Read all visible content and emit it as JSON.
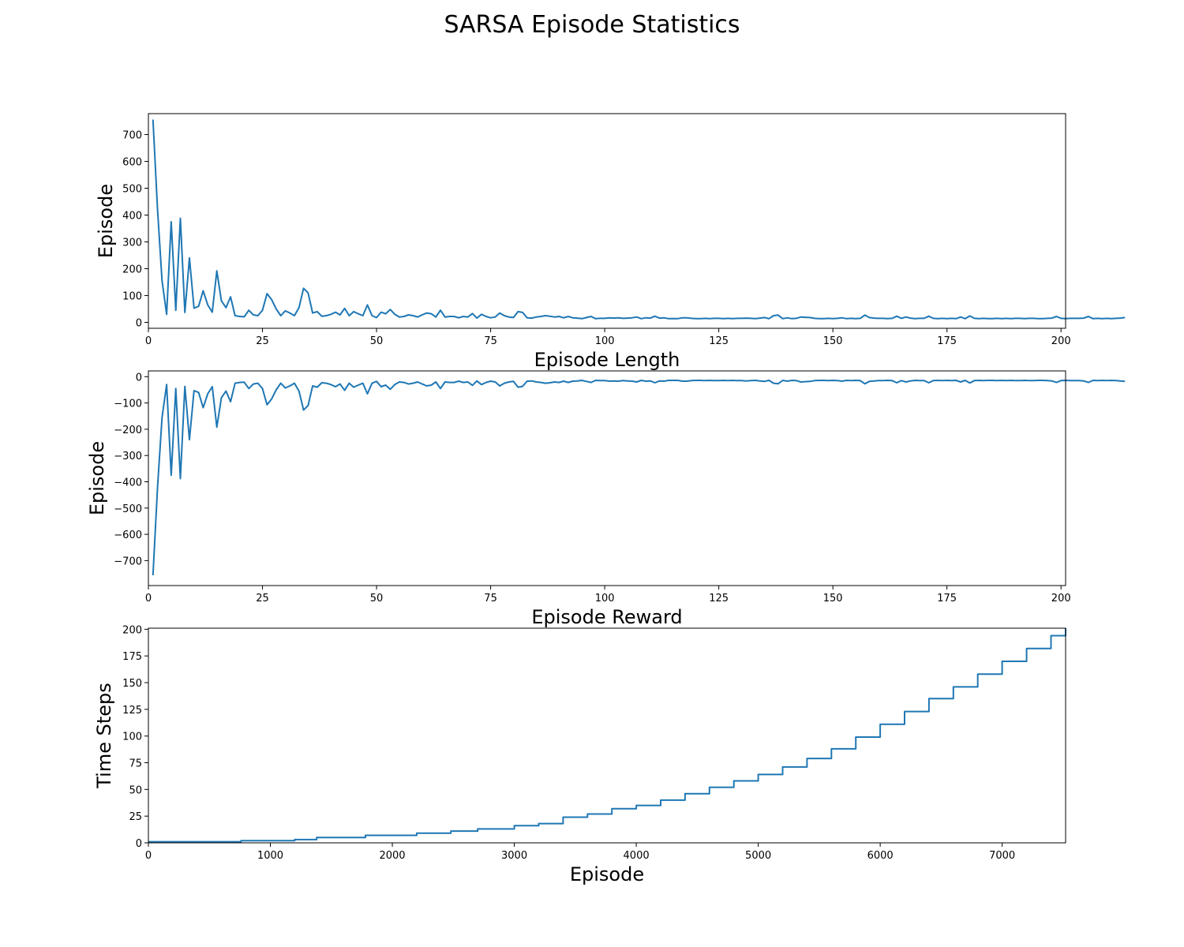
{
  "figure": {
    "title": "SARSA Episode Statistics"
  },
  "colors": {
    "line": "#1f77b4",
    "axes": "#000000",
    "background": "#ffffff"
  },
  "chart_data": [
    {
      "type": "line",
      "title": "",
      "xlabel": "Episode Length",
      "ylabel": "Episode",
      "xlim": [
        0,
        201
      ],
      "ylim": [
        -22,
        778
      ],
      "xticks": [
        0,
        25,
        50,
        75,
        100,
        125,
        150,
        175,
        200
      ],
      "yticks": [
        0,
        100,
        200,
        300,
        400,
        500,
        600,
        700
      ],
      "grid": false,
      "legend": "none",
      "x_start": 1,
      "series": [
        {
          "values": [
            756,
            420,
            155,
            30,
            375,
            45,
            388,
            37,
            240,
            53,
            60,
            118,
            65,
            38,
            192,
            80,
            55,
            95,
            25,
            22,
            21,
            45,
            28,
            25,
            45,
            107,
            85,
            50,
            25,
            43,
            35,
            25,
            55,
            127,
            110,
            35,
            40,
            23,
            25,
            30,
            38,
            28,
            52,
            25,
            40,
            32,
            25,
            65,
            25,
            18,
            38,
            32,
            48,
            30,
            20,
            22,
            28,
            25,
            20,
            28,
            35,
            32,
            20,
            45,
            20,
            22,
            22,
            17,
            22,
            20,
            33,
            16,
            30,
            22,
            17,
            20,
            35,
            25,
            20,
            18,
            40,
            37,
            17,
            16,
            20,
            22,
            25,
            23,
            20,
            22,
            17,
            22,
            17,
            16,
            14,
            18,
            22,
            14,
            15,
            15,
            17,
            16,
            17,
            15,
            16,
            17,
            20,
            14,
            17,
            16,
            23,
            16,
            17,
            14,
            14,
            14,
            17,
            17,
            15,
            14,
            14,
            15,
            14,
            15,
            15,
            14,
            15,
            14,
            15,
            15,
            16,
            15,
            14,
            16,
            18,
            14,
            25,
            27,
            14,
            17,
            14,
            15,
            20,
            19,
            18,
            15,
            14,
            14,
            15,
            14,
            15,
            17,
            14,
            15,
            14,
            15,
            27,
            18,
            16,
            15,
            15,
            14,
            15,
            23,
            15,
            20,
            16,
            14,
            15,
            15,
            23,
            15,
            14,
            15,
            14,
            15,
            14,
            20,
            14,
            24,
            15,
            14,
            15,
            14,
            14,
            15,
            14,
            15,
            14,
            15,
            15,
            14,
            15,
            15,
            14,
            14,
            15,
            16,
            22,
            15,
            14,
            15,
            15,
            15,
            16,
            22,
            14,
            15,
            14,
            15,
            14,
            15,
            16,
            18
          ]
        }
      ]
    },
    {
      "type": "line",
      "title": "",
      "xlabel": "Episode Reward",
      "ylabel": "Episode",
      "xlim": [
        0,
        201
      ],
      "ylim": [
        -795,
        22
      ],
      "xticks": [
        0,
        25,
        50,
        75,
        100,
        125,
        150,
        175,
        200
      ],
      "yticks": [
        0,
        -100,
        -200,
        -300,
        -400,
        -500,
        -600,
        -700
      ],
      "grid": false,
      "legend": "none",
      "x_start": 1,
      "series": [
        {
          "values": [
            -756,
            -420,
            -155,
            -30,
            -375,
            -45,
            -388,
            -37,
            -240,
            -53,
            -60,
            -118,
            -65,
            -38,
            -192,
            -80,
            -55,
            -95,
            -25,
            -22,
            -21,
            -45,
            -28,
            -25,
            -45,
            -107,
            -85,
            -50,
            -25,
            -43,
            -35,
            -25,
            -55,
            -127,
            -110,
            -35,
            -40,
            -23,
            -25,
            -30,
            -38,
            -28,
            -52,
            -25,
            -40,
            -32,
            -25,
            -65,
            -25,
            -18,
            -38,
            -32,
            -48,
            -30,
            -20,
            -22,
            -28,
            -25,
            -20,
            -28,
            -35,
            -32,
            -20,
            -45,
            -20,
            -22,
            -22,
            -17,
            -22,
            -20,
            -33,
            -16,
            -30,
            -22,
            -17,
            -20,
            -35,
            -25,
            -20,
            -18,
            -40,
            -37,
            -17,
            -16,
            -20,
            -22,
            -25,
            -23,
            -20,
            -22,
            -17,
            -22,
            -17,
            -16,
            -14,
            -18,
            -22,
            -14,
            -15,
            -15,
            -17,
            -16,
            -17,
            -15,
            -16,
            -17,
            -20,
            -14,
            -17,
            -16,
            -23,
            -16,
            -17,
            -14,
            -14,
            -14,
            -17,
            -17,
            -15,
            -14,
            -14,
            -15,
            -14,
            -15,
            -15,
            -14,
            -15,
            -14,
            -15,
            -15,
            -16,
            -15,
            -14,
            -16,
            -18,
            -14,
            -25,
            -27,
            -14,
            -17,
            -14,
            -15,
            -20,
            -19,
            -18,
            -15,
            -14,
            -14,
            -15,
            -14,
            -15,
            -17,
            -14,
            -15,
            -14,
            -15,
            -27,
            -18,
            -16,
            -15,
            -15,
            -14,
            -15,
            -23,
            -15,
            -20,
            -16,
            -14,
            -15,
            -15,
            -23,
            -15,
            -14,
            -15,
            -14,
            -15,
            -14,
            -20,
            -14,
            -24,
            -15,
            -14,
            -15,
            -14,
            -14,
            -15,
            -14,
            -15,
            -14,
            -15,
            -15,
            -14,
            -15,
            -15,
            -14,
            -14,
            -15,
            -16,
            -22,
            -15,
            -14,
            -15,
            -15,
            -15,
            -16,
            -22,
            -14,
            -15,
            -14,
            -15,
            -14,
            -15,
            -16,
            -18
          ]
        }
      ]
    },
    {
      "type": "line",
      "title": "",
      "xlabel": "Episode",
      "ylabel": "Time Steps",
      "xlim": [
        0,
        7520
      ],
      "ylim": [
        0,
        201
      ],
      "xticks": [
        0,
        1000,
        2000,
        3000,
        4000,
        5000,
        6000,
        7000
      ],
      "yticks": [
        0,
        25,
        50,
        75,
        100,
        125,
        150,
        175,
        200
      ],
      "grid": false,
      "legend": "none",
      "step": true,
      "series": [
        {
          "x": [
            0,
            760,
            1200,
            1380,
            1780,
            2200,
            2480,
            2700,
            3000,
            3200,
            3400,
            3600,
            3800,
            4000,
            4200,
            4400,
            4600,
            4800,
            5000,
            5200,
            5400,
            5600,
            5800,
            6000,
            6200,
            6400,
            6600,
            6800,
            7000,
            7200,
            7400,
            7520
          ],
          "y": [
            1,
            2,
            3,
            5,
            7,
            9,
            11,
            13,
            16,
            18,
            24,
            27,
            32,
            35,
            40,
            46,
            52,
            58,
            64,
            71,
            79,
            88,
            99,
            111,
            123,
            135,
            146,
            158,
            170,
            182,
            194,
            201
          ]
        }
      ]
    }
  ]
}
